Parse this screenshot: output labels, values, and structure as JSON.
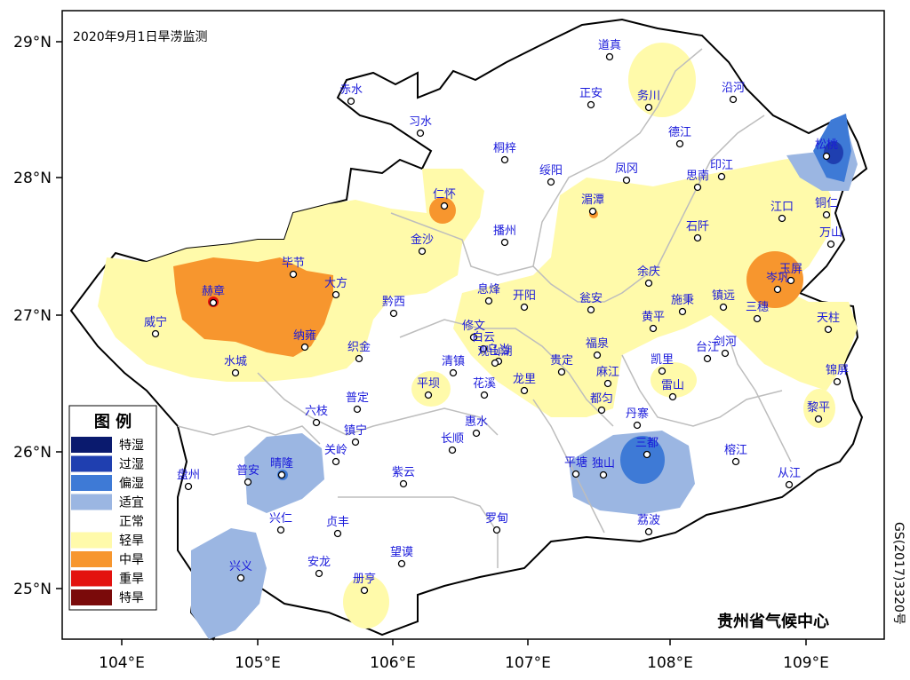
{
  "title": "2020年9月1日旱涝监测",
  "credit": "贵州省气候中心",
  "map_code": "GS(2017)3320号",
  "axes": {
    "lon_ticks": [
      "104°E",
      "105°E",
      "106°E",
      "107°E",
      "108°E",
      "109°E"
    ],
    "lat_ticks": [
      "29°N",
      "28°N",
      "27°N",
      "26°N",
      "25°N"
    ]
  },
  "legend": {
    "title": "图  例",
    "items": [
      {
        "label": "特湿",
        "color": "#0a1a6e"
      },
      {
        "label": "过湿",
        "color": "#1f3fb0"
      },
      {
        "label": "偏湿",
        "color": "#3e7ad6"
      },
      {
        "label": "适宜",
        "color": "#9bb6e2"
      },
      {
        "label": "正常",
        "color": "#ffffff"
      },
      {
        "label": "轻旱",
        "color": "#fffaaa"
      },
      {
        "label": "中旱",
        "color": "#f7962e"
      },
      {
        "label": "重旱",
        "color": "#e3120f"
      },
      {
        "label": "特旱",
        "color": "#7a0a0a"
      }
    ]
  },
  "cities": [
    "道真",
    "正安",
    "务川",
    "沿河",
    "赤水",
    "习水",
    "桐梓",
    "德江",
    "松桃",
    "绥阳",
    "凤冈",
    "思南",
    "印江",
    "仁怀",
    "湄潭",
    "铜仁",
    "江口",
    "石阡",
    "万山",
    "金沙",
    "播州",
    "毕节",
    "大方",
    "息烽",
    "开阳",
    "余庆",
    "玉屏",
    "赫章",
    "岑巩",
    "施秉",
    "镇远",
    "三穗",
    "威宁",
    "黔西",
    "瓮安",
    "天柱",
    "黄平",
    "纳雍",
    "修文",
    "白云",
    "乌当",
    "织金",
    "福泉",
    "剑河",
    "台江",
    "水城",
    "清镇",
    "观山湖",
    "贵定",
    "凯里",
    "锦屏",
    "平坝",
    "花溪",
    "龙里",
    "麻江",
    "雷山",
    "六枝",
    "普定",
    "都匀",
    "黎平",
    "丹寨",
    "惠水",
    "镇宁",
    "长顺",
    "关岭",
    "三都",
    "榕江",
    "普安",
    "晴隆",
    "紫云",
    "平塘",
    "独山",
    "盘州",
    "从江",
    "兴仁",
    "贞丰",
    "罗甸",
    "荔波",
    "兴义",
    "望谟",
    "安龙",
    "册亨"
  ]
}
